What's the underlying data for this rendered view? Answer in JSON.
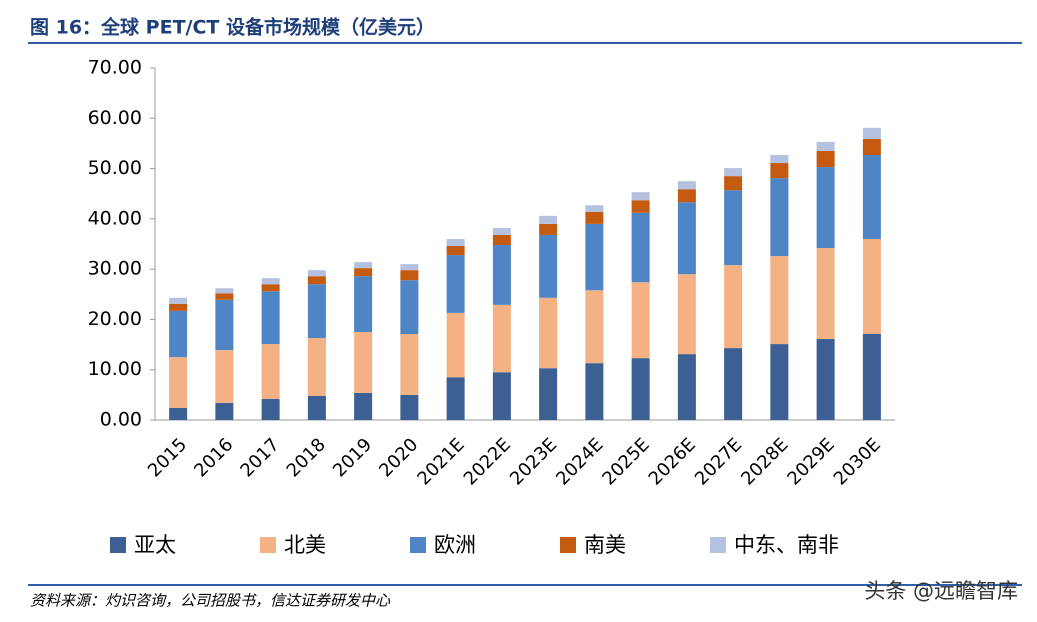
{
  "chart_data": {
    "type": "stacked_bar",
    "title": "图 16：全球 PET/CT 设备市场规模（亿美元）",
    "categories": [
      "2015",
      "2016",
      "2017",
      "2018",
      "2019",
      "2020",
      "2021E",
      "2022E",
      "2023E",
      "2024E",
      "2025E",
      "2026E",
      "2027E",
      "2028E",
      "2029E",
      "2030E"
    ],
    "series": [
      {
        "name": "亚太",
        "color": "#3c5f94",
        "values": [
          2.4,
          3.4,
          4.2,
          4.8,
          5.4,
          5.0,
          8.5,
          9.5,
          10.3,
          11.3,
          12.3,
          13.1,
          14.3,
          15.1,
          16.1,
          17.1
        ]
      },
      {
        "name": "北美",
        "color": "#f4b183",
        "values": [
          10.1,
          10.5,
          10.9,
          11.5,
          12.1,
          12.1,
          12.8,
          13.4,
          14.0,
          14.5,
          15.1,
          15.9,
          16.5,
          17.5,
          18.1,
          18.9
        ]
      },
      {
        "name": "欧洲",
        "color": "#4f85c5",
        "values": [
          9.2,
          10.0,
          10.5,
          10.7,
          11.1,
          10.7,
          11.5,
          11.9,
          12.5,
          13.2,
          13.8,
          14.3,
          14.9,
          15.5,
          16.1,
          16.7
        ]
      },
      {
        "name": "南美",
        "color": "#c55a11",
        "values": [
          1.4,
          1.3,
          1.4,
          1.6,
          1.6,
          2.0,
          1.8,
          2.0,
          2.2,
          2.4,
          2.5,
          2.6,
          2.8,
          3.0,
          3.2,
          3.2
        ]
      },
      {
        "name": "中东、南非",
        "color": "#b4c2e0",
        "values": [
          1.2,
          1.0,
          1.2,
          1.2,
          1.2,
          1.2,
          1.4,
          1.4,
          1.6,
          1.3,
          1.6,
          1.6,
          1.6,
          1.6,
          1.8,
          2.2
        ]
      }
    ],
    "ylim": [
      0,
      70
    ],
    "yticks": [
      {
        "value": 0,
        "label": "0.00"
      },
      {
        "value": 10,
        "label": "10.00"
      },
      {
        "value": 20,
        "label": "20.00"
      },
      {
        "value": 30,
        "label": "30.00"
      },
      {
        "value": 40,
        "label": "40.00"
      },
      {
        "value": 50,
        "label": "50.00"
      },
      {
        "value": 60,
        "label": "60.00"
      },
      {
        "value": 70,
        "label": "70.00"
      }
    ],
    "grid": false,
    "legend": "bottom",
    "source": "资料来源：灼识咨询，公司招股书，信达证券研发中心",
    "watermark": "头条 @远瞻智库"
  }
}
